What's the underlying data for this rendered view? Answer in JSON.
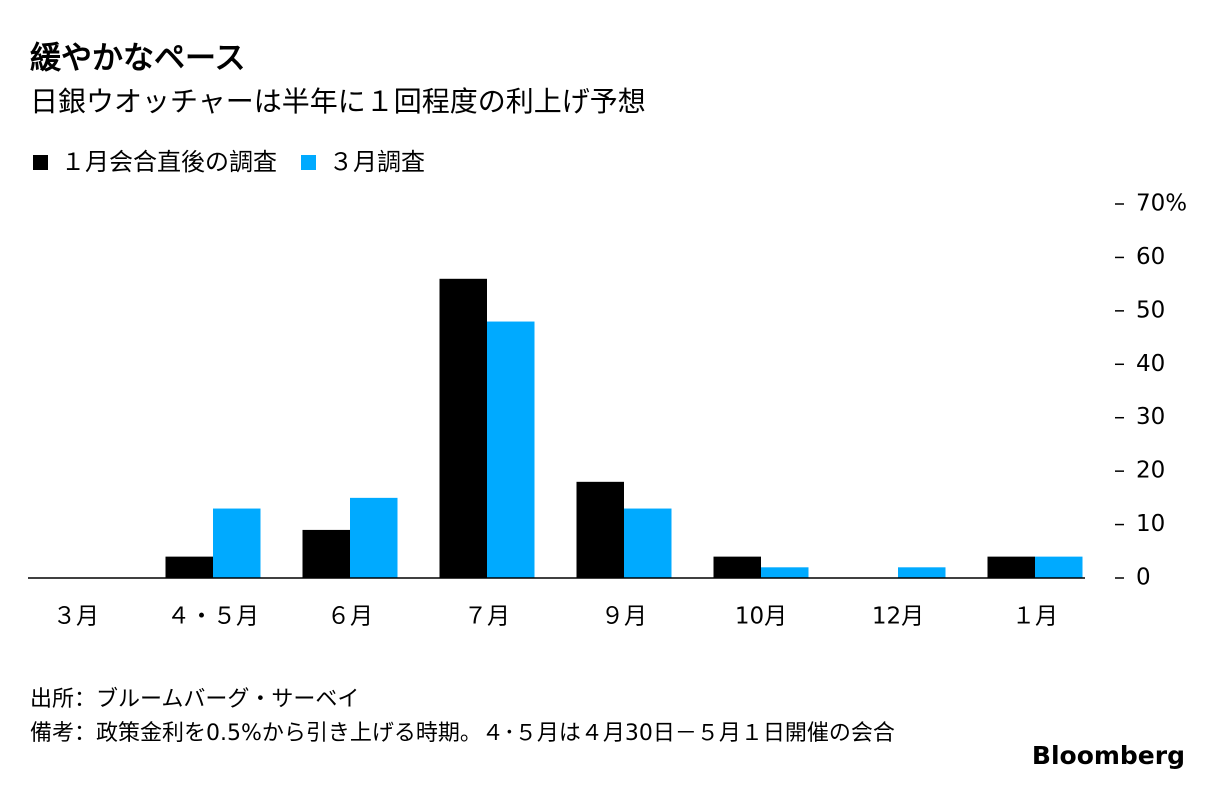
{
  "chart_data": {
    "type": "bar",
    "title": "緩やかなペース",
    "subtitle": "日銀ウオッチャーは半年に１回程度の利上げ予想",
    "categories": [
      "３月",
      "４・５月",
      "６月",
      "７月",
      "９月",
      "10月",
      "12月",
      "１月"
    ],
    "series": [
      {
        "name": "１月会合直後の調査",
        "color": "#000000",
        "values": [
          0,
          4,
          9,
          56,
          18,
          4,
          0,
          4
        ]
      },
      {
        "name": "３月調査",
        "color": "#00aaff",
        "values": [
          0,
          13,
          15,
          48,
          13,
          2,
          2,
          4
        ]
      }
    ],
    "ylim": [
      0,
      70
    ],
    "yticks": [
      0,
      10,
      20,
      30,
      40,
      50,
      60,
      {
        "value": 70,
        "label": "70%"
      }
    ],
    "source": "出所：ブルームバーグ・サーベイ",
    "note": "備考：政策金利を0.5%から引き上げる時期。４･５月は４月30日－５月１日開催の会合",
    "brand": "Bloomberg"
  }
}
